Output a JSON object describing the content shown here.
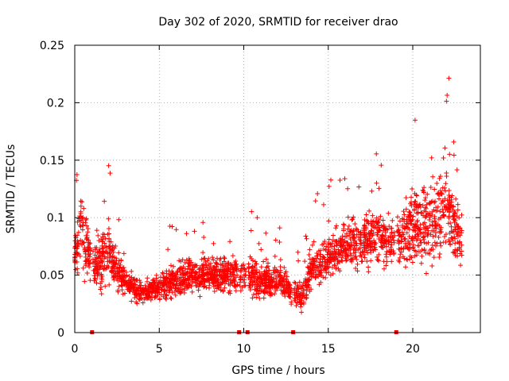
{
  "chart_data": {
    "type": "scatter",
    "title": "Day 302 of 2020, SRMTID for receiver drao",
    "xlabel": "GPS time / hours",
    "ylabel": "SRMTID / TECUs",
    "xlim": [
      0,
      24
    ],
    "ylim": [
      0,
      0.25
    ],
    "x_ticks": [
      0,
      5,
      10,
      15,
      20
    ],
    "x_tick_labels": [
      "0",
      "5",
      "10",
      "15",
      "20"
    ],
    "y_ticks": [
      0,
      0.05,
      0.1,
      0.15,
      0.2,
      0.25
    ],
    "y_tick_labels": [
      "0",
      "0.05",
      "0.1",
      "0.15",
      "0.2",
      "0.25"
    ],
    "grid": true,
    "marker": "+",
    "color": "#ff0000",
    "gap_markers_x": [
      1.0,
      9.7,
      10.2,
      12.9,
      19.0
    ],
    "trend": {
      "x": [
        0.0,
        0.3,
        0.6,
        1.0,
        1.5,
        2.0,
        2.5,
        3.0,
        4.0,
        5.0,
        6.0,
        7.0,
        8.0,
        9.0,
        10.0,
        11.0,
        12.0,
        13.0,
        13.5,
        14.0,
        15.0,
        16.0,
        17.0,
        18.0,
        19.0,
        20.0,
        21.0,
        22.0,
        22.8
      ],
      "center": [
        0.065,
        0.09,
        0.08,
        0.055,
        0.06,
        0.07,
        0.055,
        0.045,
        0.035,
        0.04,
        0.045,
        0.05,
        0.05,
        0.05,
        0.05,
        0.045,
        0.045,
        0.035,
        0.03,
        0.055,
        0.065,
        0.075,
        0.08,
        0.085,
        0.075,
        0.09,
        0.095,
        0.11,
        0.08
      ],
      "spread": [
        0.03,
        0.06,
        0.05,
        0.025,
        0.04,
        0.04,
        0.025,
        0.02,
        0.018,
        0.02,
        0.025,
        0.025,
        0.025,
        0.025,
        0.03,
        0.025,
        0.025,
        0.02,
        0.02,
        0.03,
        0.03,
        0.035,
        0.04,
        0.04,
        0.04,
        0.055,
        0.06,
        0.06,
        0.04
      ]
    },
    "samples": 2600,
    "x_range": [
      0.0,
      22.9
    ]
  }
}
